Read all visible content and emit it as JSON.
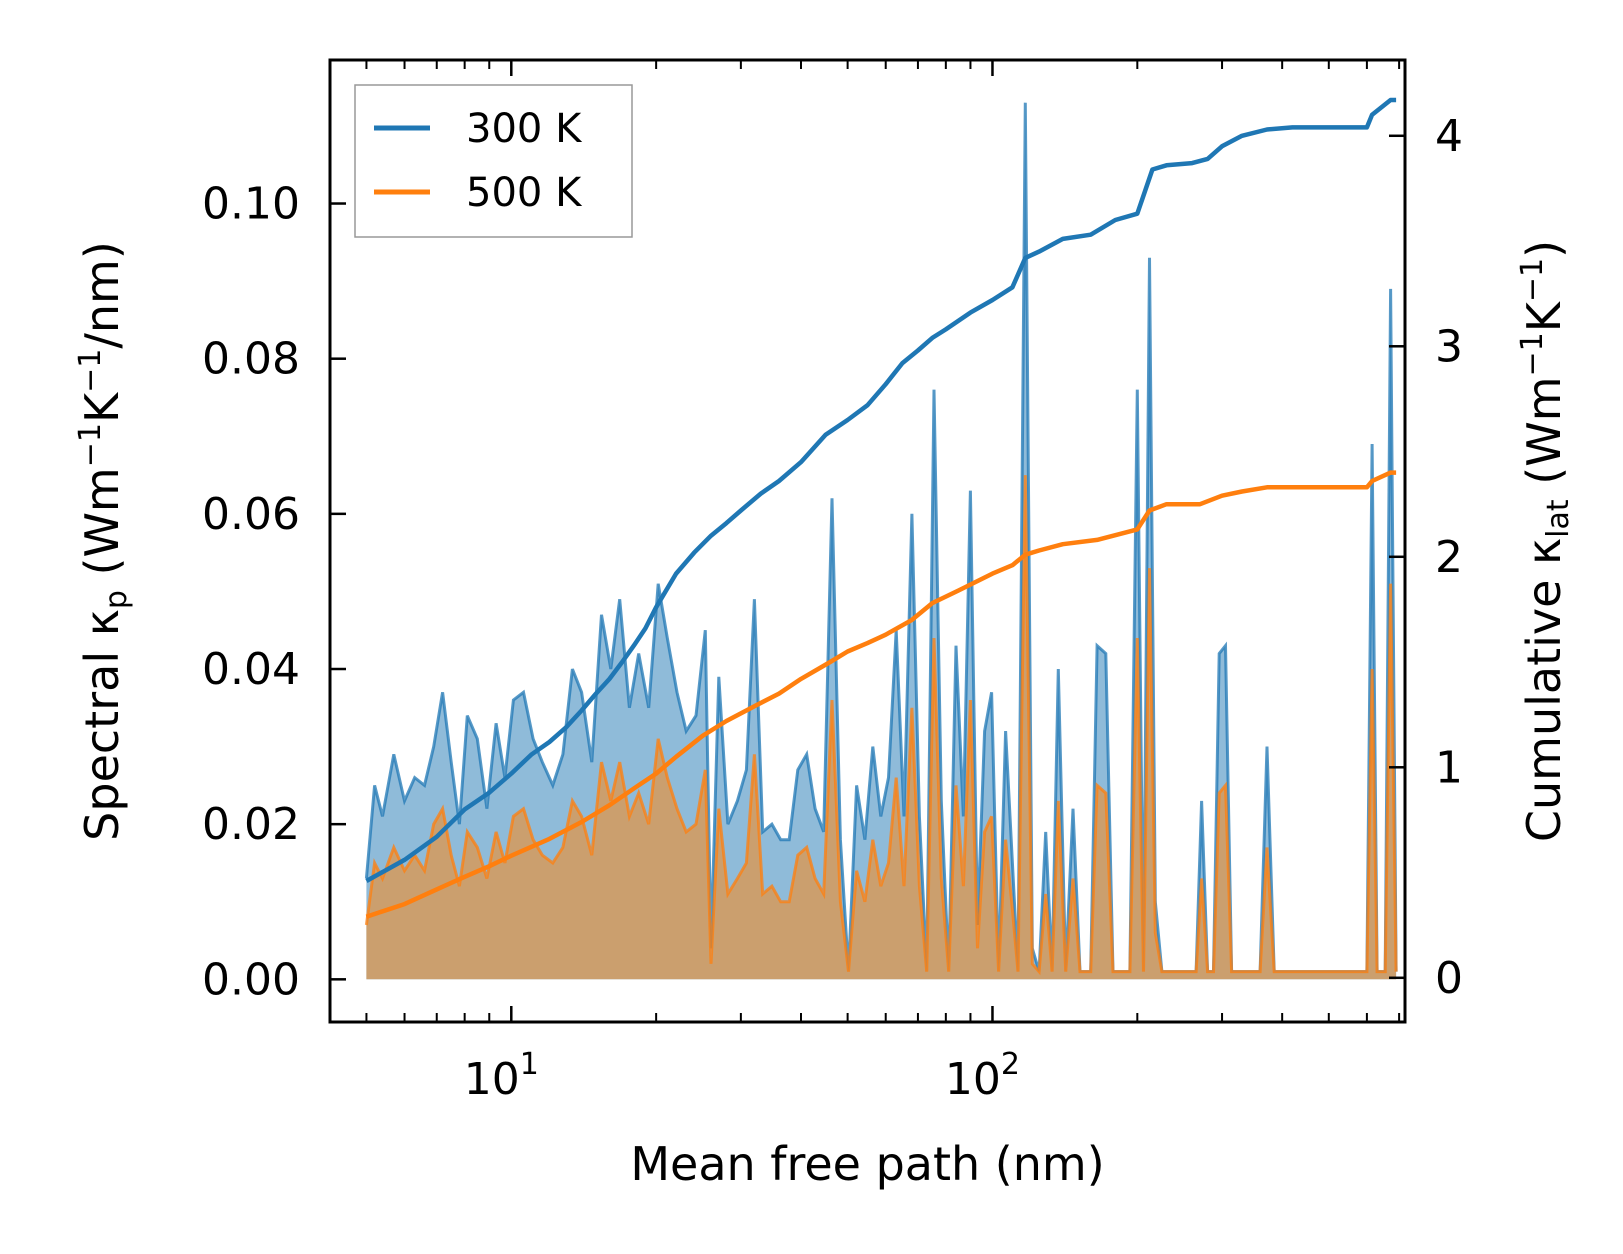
{
  "chart_data": {
    "type": "area+line",
    "title": "",
    "xlabel": "Mean free path (nm)",
    "ylabel_left": {
      "prefix": "Spectral κ",
      "sub": "p",
      "suffix": " (Wm",
      "sup1": "−1",
      "mid": "K",
      "sup2": "−1",
      "end": "/nm)"
    },
    "ylabel_right": {
      "prefix": "Cumulative κ",
      "sub": "lat",
      "suffix": " (Wm",
      "sup1": "−1",
      "mid": "K",
      "sup2": "−1",
      "end": ")"
    },
    "xscale": "log",
    "xlim": [
      4.2,
      720
    ],
    "ylim_left": [
      -0.0055,
      0.1185
    ],
    "ylim_right": [
      -0.21,
      4.36
    ],
    "x_ticks": [
      {
        "value": 10,
        "base": "10",
        "exp": "1"
      },
      {
        "value": 100,
        "base": "10",
        "exp": "2"
      }
    ],
    "y_ticks_left": [
      "0.00",
      "0.02",
      "0.04",
      "0.06",
      "0.08",
      "0.10"
    ],
    "y_ticks_right": [
      "0",
      "1",
      "2",
      "3",
      "4"
    ],
    "legend": {
      "position": "top-left",
      "entries": [
        "300 K",
        "500 K"
      ]
    },
    "colors": {
      "s300": "#1f77b4",
      "s500": "#ff7f0e",
      "fill300": "#1f77b4",
      "fill500": "#d69a5a"
    },
    "spectral_300K": [
      [
        5.0,
        0.013
      ],
      [
        5.2,
        0.025
      ],
      [
        5.4,
        0.021
      ],
      [
        5.7,
        0.029
      ],
      [
        6.0,
        0.023
      ],
      [
        6.3,
        0.026
      ],
      [
        6.6,
        0.025
      ],
      [
        6.9,
        0.03
      ],
      [
        7.2,
        0.037
      ],
      [
        7.5,
        0.028
      ],
      [
        7.8,
        0.02
      ],
      [
        8.1,
        0.034
      ],
      [
        8.5,
        0.031
      ],
      [
        8.9,
        0.022
      ],
      [
        9.3,
        0.033
      ],
      [
        9.7,
        0.026
      ],
      [
        10.1,
        0.036
      ],
      [
        10.6,
        0.037
      ],
      [
        11.1,
        0.031
      ],
      [
        11.6,
        0.028
      ],
      [
        12.2,
        0.025
      ],
      [
        12.8,
        0.029
      ],
      [
        13.4,
        0.04
      ],
      [
        14.0,
        0.037
      ],
      [
        14.7,
        0.028
      ],
      [
        15.4,
        0.047
      ],
      [
        16.1,
        0.04
      ],
      [
        16.8,
        0.049
      ],
      [
        17.6,
        0.035
      ],
      [
        18.4,
        0.042
      ],
      [
        19.3,
        0.035
      ],
      [
        20.2,
        0.051
      ],
      [
        21.1,
        0.044
      ],
      [
        22.1,
        0.037
      ],
      [
        23.1,
        0.032
      ],
      [
        24.2,
        0.034
      ],
      [
        25.3,
        0.045
      ],
      [
        26.0,
        0.004
      ],
      [
        27.0,
        0.039
      ],
      [
        28.2,
        0.02
      ],
      [
        29.5,
        0.023
      ],
      [
        30.8,
        0.027
      ],
      [
        32.0,
        0.049
      ],
      [
        33.3,
        0.019
      ],
      [
        34.8,
        0.02
      ],
      [
        36.3,
        0.018
      ],
      [
        37.8,
        0.018
      ],
      [
        39.4,
        0.027
      ],
      [
        41.1,
        0.029
      ],
      [
        42.8,
        0.022
      ],
      [
        44.6,
        0.019
      ],
      [
        46.4,
        0.062
      ],
      [
        48.3,
        0.018
      ],
      [
        50.2,
        0.001
      ],
      [
        52.2,
        0.025
      ],
      [
        54.3,
        0.018
      ],
      [
        56.4,
        0.03
      ],
      [
        58.6,
        0.021
      ],
      [
        60.8,
        0.026
      ],
      [
        63.1,
        0.045
      ],
      [
        65.5,
        0.021
      ],
      [
        68.0,
        0.06
      ],
      [
        70.5,
        0.021
      ],
      [
        73.0,
        0.001
      ],
      [
        75.6,
        0.076
      ],
      [
        78.3,
        0.023
      ],
      [
        81.1,
        0.001
      ],
      [
        84.0,
        0.043
      ],
      [
        87.0,
        0.021
      ],
      [
        90.0,
        0.063
      ],
      [
        93.1,
        0.007
      ],
      [
        96.3,
        0.032
      ],
      [
        99.6,
        0.037
      ],
      [
        103.0,
        0.001
      ],
      [
        106.5,
        0.032
      ],
      [
        110.0,
        0.015
      ],
      [
        113.0,
        0.001
      ],
      [
        117.0,
        0.113
      ],
      [
        121.0,
        0.004
      ],
      [
        125.0,
        0.001
      ],
      [
        129.0,
        0.019
      ],
      [
        133.0,
        0.001
      ],
      [
        137.0,
        0.04
      ],
      [
        142.0,
        0.001
      ],
      [
        147.0,
        0.022
      ],
      [
        152.0,
        0.001
      ],
      [
        160.0,
        0.001
      ],
      [
        165.0,
        0.043
      ],
      [
        172.0,
        0.042
      ],
      [
        178.0,
        0.001
      ],
      [
        186.0,
        0.001
      ],
      [
        193.0,
        0.001
      ],
      [
        200.0,
        0.076
      ],
      [
        206.0,
        0.001
      ],
      [
        212.0,
        0.093
      ],
      [
        218.0,
        0.01
      ],
      [
        225.0,
        0.001
      ],
      [
        265.0,
        0.001
      ],
      [
        272.0,
        0.023
      ],
      [
        280.0,
        0.001
      ],
      [
        288.0,
        0.001
      ],
      [
        296.0,
        0.042
      ],
      [
        305.0,
        0.043
      ],
      [
        314.0,
        0.001
      ],
      [
        360.0,
        0.001
      ],
      [
        372.0,
        0.03
      ],
      [
        385.0,
        0.001
      ],
      [
        600.0,
        0.001
      ],
      [
        615.0,
        0.069
      ],
      [
        630.0,
        0.001
      ],
      [
        655.0,
        0.001
      ],
      [
        672.0,
        0.089
      ],
      [
        690.0,
        0.001
      ]
    ],
    "spectral_500K": [
      [
        5.0,
        0.007
      ],
      [
        5.2,
        0.015
      ],
      [
        5.4,
        0.013
      ],
      [
        5.7,
        0.017
      ],
      [
        6.0,
        0.014
      ],
      [
        6.3,
        0.016
      ],
      [
        6.6,
        0.014
      ],
      [
        6.9,
        0.02
      ],
      [
        7.2,
        0.022
      ],
      [
        7.5,
        0.016
      ],
      [
        7.8,
        0.012
      ],
      [
        8.1,
        0.019
      ],
      [
        8.5,
        0.017
      ],
      [
        8.9,
        0.013
      ],
      [
        9.3,
        0.019
      ],
      [
        9.7,
        0.015
      ],
      [
        10.1,
        0.021
      ],
      [
        10.6,
        0.022
      ],
      [
        11.1,
        0.018
      ],
      [
        11.6,
        0.016
      ],
      [
        12.2,
        0.015
      ],
      [
        12.8,
        0.017
      ],
      [
        13.4,
        0.023
      ],
      [
        14.0,
        0.021
      ],
      [
        14.7,
        0.016
      ],
      [
        15.4,
        0.028
      ],
      [
        16.1,
        0.023
      ],
      [
        16.8,
        0.028
      ],
      [
        17.6,
        0.021
      ],
      [
        18.4,
        0.024
      ],
      [
        19.3,
        0.02
      ],
      [
        20.2,
        0.031
      ],
      [
        21.1,
        0.026
      ],
      [
        22.1,
        0.022
      ],
      [
        23.1,
        0.019
      ],
      [
        24.2,
        0.02
      ],
      [
        25.3,
        0.027
      ],
      [
        26.0,
        0.002
      ],
      [
        27.0,
        0.022
      ],
      [
        28.2,
        0.011
      ],
      [
        29.5,
        0.013
      ],
      [
        30.8,
        0.015
      ],
      [
        32.0,
        0.029
      ],
      [
        33.3,
        0.011
      ],
      [
        34.8,
        0.012
      ],
      [
        36.3,
        0.01
      ],
      [
        37.8,
        0.01
      ],
      [
        39.4,
        0.016
      ],
      [
        41.1,
        0.017
      ],
      [
        42.8,
        0.013
      ],
      [
        44.6,
        0.011
      ],
      [
        46.4,
        0.036
      ],
      [
        48.3,
        0.01
      ],
      [
        50.2,
        0.001
      ],
      [
        52.2,
        0.014
      ],
      [
        54.3,
        0.01
      ],
      [
        56.4,
        0.018
      ],
      [
        58.6,
        0.012
      ],
      [
        60.8,
        0.015
      ],
      [
        63.1,
        0.026
      ],
      [
        65.5,
        0.012
      ],
      [
        68.0,
        0.035
      ],
      [
        70.5,
        0.012
      ],
      [
        73.0,
        0.001
      ],
      [
        75.6,
        0.044
      ],
      [
        78.3,
        0.013
      ],
      [
        81.1,
        0.001
      ],
      [
        84.0,
        0.025
      ],
      [
        87.0,
        0.012
      ],
      [
        90.0,
        0.036
      ],
      [
        93.1,
        0.004
      ],
      [
        96.3,
        0.019
      ],
      [
        99.6,
        0.021
      ],
      [
        103.0,
        0.001
      ],
      [
        106.5,
        0.018
      ],
      [
        110.0,
        0.009
      ],
      [
        113.0,
        0.001
      ],
      [
        117.0,
        0.065
      ],
      [
        121.0,
        0.002
      ],
      [
        125.0,
        0.001
      ],
      [
        129.0,
        0.011
      ],
      [
        133.0,
        0.001
      ],
      [
        137.0,
        0.023
      ],
      [
        142.0,
        0.001
      ],
      [
        147.0,
        0.013
      ],
      [
        152.0,
        0.001
      ],
      [
        160.0,
        0.001
      ],
      [
        165.0,
        0.025
      ],
      [
        172.0,
        0.024
      ],
      [
        178.0,
        0.001
      ],
      [
        186.0,
        0.001
      ],
      [
        193.0,
        0.001
      ],
      [
        200.0,
        0.044
      ],
      [
        206.0,
        0.001
      ],
      [
        212.0,
        0.053
      ],
      [
        218.0,
        0.006
      ],
      [
        225.0,
        0.001
      ],
      [
        265.0,
        0.001
      ],
      [
        272.0,
        0.013
      ],
      [
        280.0,
        0.001
      ],
      [
        288.0,
        0.001
      ],
      [
        296.0,
        0.024
      ],
      [
        305.0,
        0.025
      ],
      [
        314.0,
        0.001
      ],
      [
        360.0,
        0.001
      ],
      [
        372.0,
        0.017
      ],
      [
        385.0,
        0.001
      ],
      [
        600.0,
        0.001
      ],
      [
        615.0,
        0.04
      ],
      [
        630.0,
        0.001
      ],
      [
        655.0,
        0.001
      ],
      [
        672.0,
        0.051
      ],
      [
        690.0,
        0.001
      ]
    ],
    "cumulative_300K": [
      [
        5.0,
        0.46
      ],
      [
        6.0,
        0.56
      ],
      [
        7.0,
        0.67
      ],
      [
        8.0,
        0.8
      ],
      [
        9.0,
        0.88
      ],
      [
        10.0,
        0.97
      ],
      [
        11.0,
        1.06
      ],
      [
        12.0,
        1.12
      ],
      [
        13.0,
        1.19
      ],
      [
        14.0,
        1.27
      ],
      [
        15.0,
        1.35
      ],
      [
        16.0,
        1.42
      ],
      [
        17.0,
        1.5
      ],
      [
        18.0,
        1.58
      ],
      [
        19.0,
        1.66
      ],
      [
        20.0,
        1.76
      ],
      [
        22.0,
        1.92
      ],
      [
        24.0,
        2.02
      ],
      [
        26.0,
        2.1
      ],
      [
        28.0,
        2.16
      ],
      [
        30.0,
        2.22
      ],
      [
        33.0,
        2.3
      ],
      [
        36.0,
        2.36
      ],
      [
        40.0,
        2.45
      ],
      [
        45.0,
        2.58
      ],
      [
        50.0,
        2.65
      ],
      [
        55.0,
        2.72
      ],
      [
        60.0,
        2.82
      ],
      [
        65.0,
        2.92
      ],
      [
        70.0,
        2.98
      ],
      [
        75.0,
        3.04
      ],
      [
        80.0,
        3.08
      ],
      [
        90.0,
        3.16
      ],
      [
        100.0,
        3.22
      ],
      [
        110.0,
        3.28
      ],
      [
        117.0,
        3.42
      ],
      [
        125.0,
        3.45
      ],
      [
        140.0,
        3.51
      ],
      [
        160.0,
        3.53
      ],
      [
        180.0,
        3.6
      ],
      [
        200.0,
        3.63
      ],
      [
        215.0,
        3.84
      ],
      [
        230.0,
        3.86
      ],
      [
        260.0,
        3.87
      ],
      [
        280.0,
        3.89
      ],
      [
        300.0,
        3.95
      ],
      [
        330.0,
        4.0
      ],
      [
        372.0,
        4.03
      ],
      [
        420.0,
        4.04
      ],
      [
        600.0,
        4.04
      ],
      [
        615.0,
        4.1
      ],
      [
        672.0,
        4.17
      ],
      [
        690.0,
        4.17
      ]
    ],
    "cumulative_500K": [
      [
        5.0,
        0.29
      ],
      [
        6.0,
        0.35
      ],
      [
        7.0,
        0.42
      ],
      [
        8.0,
        0.48
      ],
      [
        9.0,
        0.53
      ],
      [
        10.0,
        0.58
      ],
      [
        12.0,
        0.66
      ],
      [
        14.0,
        0.74
      ],
      [
        16.0,
        0.82
      ],
      [
        18.0,
        0.9
      ],
      [
        20.0,
        0.97
      ],
      [
        22.0,
        1.05
      ],
      [
        25.0,
        1.15
      ],
      [
        28.0,
        1.22
      ],
      [
        32.0,
        1.29
      ],
      [
        36.0,
        1.35
      ],
      [
        40.0,
        1.42
      ],
      [
        46.0,
        1.5
      ],
      [
        50.0,
        1.55
      ],
      [
        55.0,
        1.59
      ],
      [
        60.0,
        1.63
      ],
      [
        68.0,
        1.7
      ],
      [
        75.0,
        1.78
      ],
      [
        85.0,
        1.84
      ],
      [
        100.0,
        1.92
      ],
      [
        110.0,
        1.96
      ],
      [
        117.0,
        2.01
      ],
      [
        125.0,
        2.03
      ],
      [
        140.0,
        2.06
      ],
      [
        165.0,
        2.08
      ],
      [
        200.0,
        2.13
      ],
      [
        212.0,
        2.22
      ],
      [
        230.0,
        2.25
      ],
      [
        270.0,
        2.25
      ],
      [
        300.0,
        2.29
      ],
      [
        330.0,
        2.31
      ],
      [
        372.0,
        2.33
      ],
      [
        600.0,
        2.33
      ],
      [
        615.0,
        2.36
      ],
      [
        672.0,
        2.4
      ],
      [
        690.0,
        2.4
      ]
    ]
  }
}
